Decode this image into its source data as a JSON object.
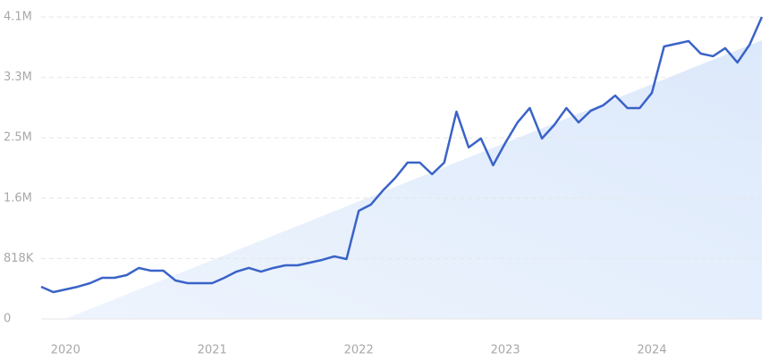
{
  "chart_data": {
    "type": "line",
    "categories": [
      null,
      null,
      "2020",
      null,
      null,
      null,
      null,
      null,
      null,
      null,
      null,
      null,
      null,
      null,
      "2021",
      null,
      null,
      null,
      null,
      null,
      null,
      null,
      null,
      null,
      null,
      null,
      "2022",
      null,
      null,
      null,
      null,
      null,
      null,
      null,
      null,
      null,
      null,
      null,
      "2023",
      null,
      null,
      null,
      null,
      null,
      null,
      null,
      null,
      null,
      null,
      null,
      "2024",
      null,
      null,
      null,
      null,
      null,
      null,
      null,
      null,
      null
    ],
    "series": [
      {
        "color": "#3a63c8",
        "values": [
          436000,
          363000,
          399000,
          436000,
          484000,
          557000,
          557000,
          593000,
          690000,
          653000,
          653000,
          520000,
          484000,
          484000,
          484000,
          557000,
          641000,
          690000,
          641000,
          690000,
          726000,
          726000,
          762000,
          799000,
          847000,
          811000,
          1464000,
          1549000,
          1743000,
          1912000,
          2118000,
          2118000,
          1960000,
          2118000,
          2807000,
          2323000,
          2444000,
          2081000,
          2384000,
          2662000,
          2856000,
          2444000,
          2626000,
          2856000,
          2662000,
          2820000,
          2892000,
          3025000,
          2856000,
          2856000,
          3062000,
          3691000,
          3727000,
          3763000,
          3594000,
          3558000,
          3667000,
          3473000,
          3715000,
          4090000
        ]
      }
    ],
    "ylim": [
      0,
      4090000
    ],
    "yticks": [
      0,
      {
        "value": 818000,
        "label": "818K"
      },
      {
        "value": 1636000,
        "label": "1.6M"
      },
      {
        "value": 2454000,
        "label": "2.5M"
      },
      {
        "value": 3272000,
        "label": "3.3M"
      },
      {
        "value": 4090000,
        "label": "4.1M"
      }
    ],
    "grid": true
  }
}
